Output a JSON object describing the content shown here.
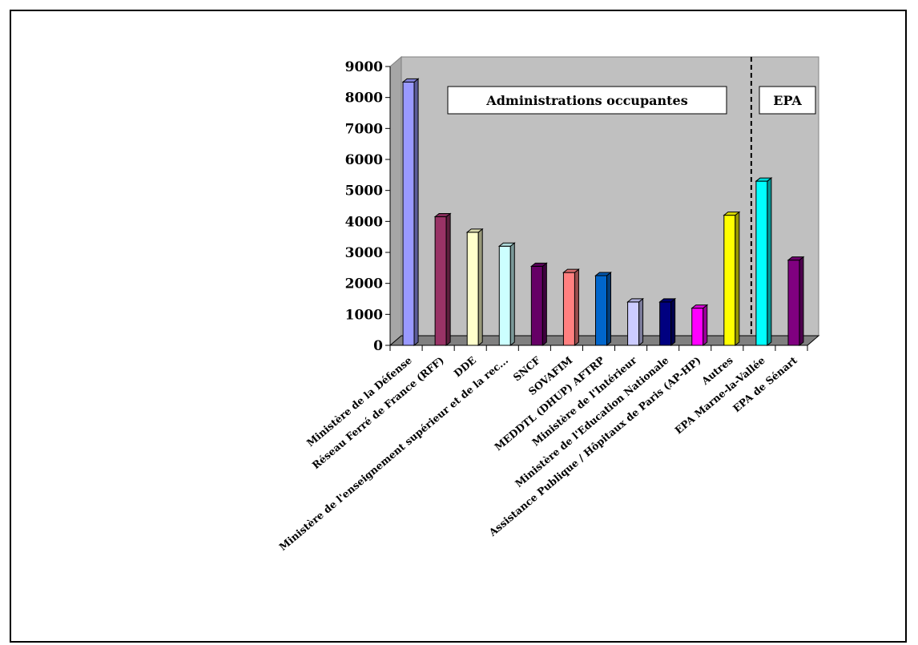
{
  "chart_data": {
    "type": "bar",
    "categories": [
      "Ministère de la Défense",
      "Réseau Ferré de France (RFF)",
      "DDE",
      "Ministère de l'enseignement supérieur et de la rec...",
      "SNCF",
      "SOVAFIM",
      "MEDDTL (DHUP) AFTRP",
      "Ministère de l'Intérieur",
      "Ministère de l'Education Nationale",
      "Assistance Publique / Hôpitaux de Paris (AP-HP)",
      "Autres",
      "EPA Marne-la-Vallée",
      "EPA de Sénart"
    ],
    "values": [
      8500,
      4150,
      3650,
      3200,
      2550,
      2350,
      2250,
      1400,
      1400,
      1200,
      4200,
      5300,
      2750
    ],
    "colors": [
      "#9999ff",
      "#993366",
      "#ffffcc",
      "#ccffff",
      "#660066",
      "#ff8080",
      "#0066cc",
      "#ccccff",
      "#000080",
      "#ff00ff",
      "#ffff00",
      "#00ffff",
      "#800080"
    ],
    "ylim": [
      0,
      9000
    ],
    "yticks": [
      0,
      1000,
      2000,
      3000,
      4000,
      5000,
      6000,
      7000,
      8000,
      9000
    ],
    "groups": [
      {
        "label": "Administrations occupantes",
        "start": 0,
        "end": 10
      },
      {
        "label": "EPA",
        "start": 11,
        "end": 12
      }
    ],
    "grid": false,
    "legend": "none",
    "style": "3d-bar",
    "wall_color": "#c0c0c0",
    "floor_color": "#808080"
  }
}
